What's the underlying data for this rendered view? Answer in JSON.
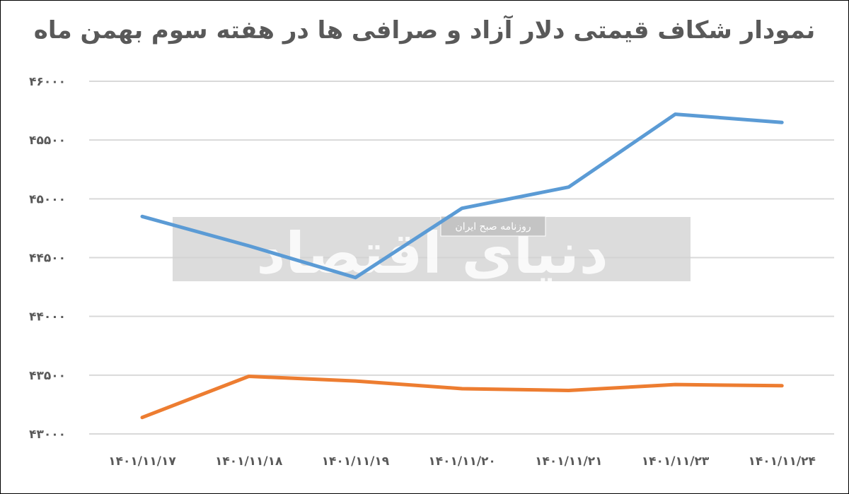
{
  "chart_data": {
    "type": "line",
    "title": "نمودار شکاف قیمتی دلار آزاد و صرافی ها در هفته سوم بهمن ماه",
    "categories": [
      "1401/11/17",
      "1401/11/18",
      "1401/11/19",
      "1401/11/20",
      "1401/11/21",
      "1401/11/23",
      "1401/11/24"
    ],
    "category_labels": [
      "۱۴۰۱/۱۱/۱۷",
      "۱۴۰۱/۱۱/۱۸",
      "۱۴۰۱/۱۱/۱۹",
      "۱۴۰۱/۱۱/۲۰",
      "۱۴۰۱/۱۱/۲۱",
      "۱۴۰۱/۱۱/۲۳",
      "۱۴۰۱/۱۱/۲۴"
    ],
    "series": [
      {
        "color": "#5b9bd5",
        "values": [
          44850,
          44600,
          44330,
          44920,
          45100,
          45720,
          45650
        ]
      },
      {
        "color": "#ed7d31",
        "values": [
          43140,
          43490,
          43450,
          43385,
          43370,
          43420,
          43410
        ]
      }
    ],
    "yticks": [
      43000,
      43500,
      44000,
      44500,
      45000,
      45500,
      46000
    ],
    "ytick_labels": [
      "۴۳۰۰۰",
      "۴۳۵۰۰",
      "۴۴۰۰۰",
      "۴۴۵۰۰",
      "۴۵۰۰۰",
      "۴۵۵۰۰",
      "۴۶۰۰۰"
    ],
    "ylim": [
      43000,
      46000
    ],
    "grid": true,
    "legend": "none",
    "xlabel": "",
    "ylabel": ""
  },
  "watermark": {
    "logo_text": "دنیای اقتصاد",
    "tagline": "روزنامه صبح ایران"
  }
}
